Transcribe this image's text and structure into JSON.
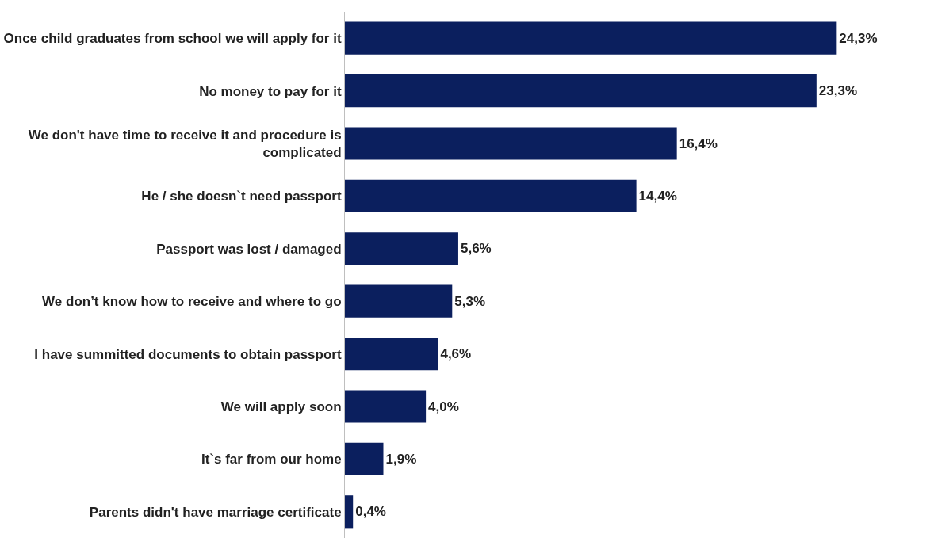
{
  "chart_data": {
    "type": "bar",
    "orientation": "horizontal",
    "categories": [
      "Once child graduates from school we will apply for it",
      "No money to pay for it",
      "We don't have time to receive it and procedure is complicated",
      "He / she doesn`t need passport",
      "Passport was lost / damaged",
      "We don’t know how to receive and where to go",
      "I have summitted documents to obtain passport",
      "We will apply soon",
      "It`s far from our home",
      "Parents didn't have marriage certificate"
    ],
    "values": [
      24.3,
      23.3,
      16.4,
      14.4,
      5.6,
      5.3,
      4.6,
      4.0,
      1.9,
      0.4
    ],
    "value_labels": [
      "24,3%",
      "23,3%",
      "16,4%",
      "14,4%",
      "5,6%",
      "5,3%",
      "4,6%",
      "4,0%",
      "1,9%",
      "0,4%"
    ],
    "color": "#0b1f5e"
  }
}
